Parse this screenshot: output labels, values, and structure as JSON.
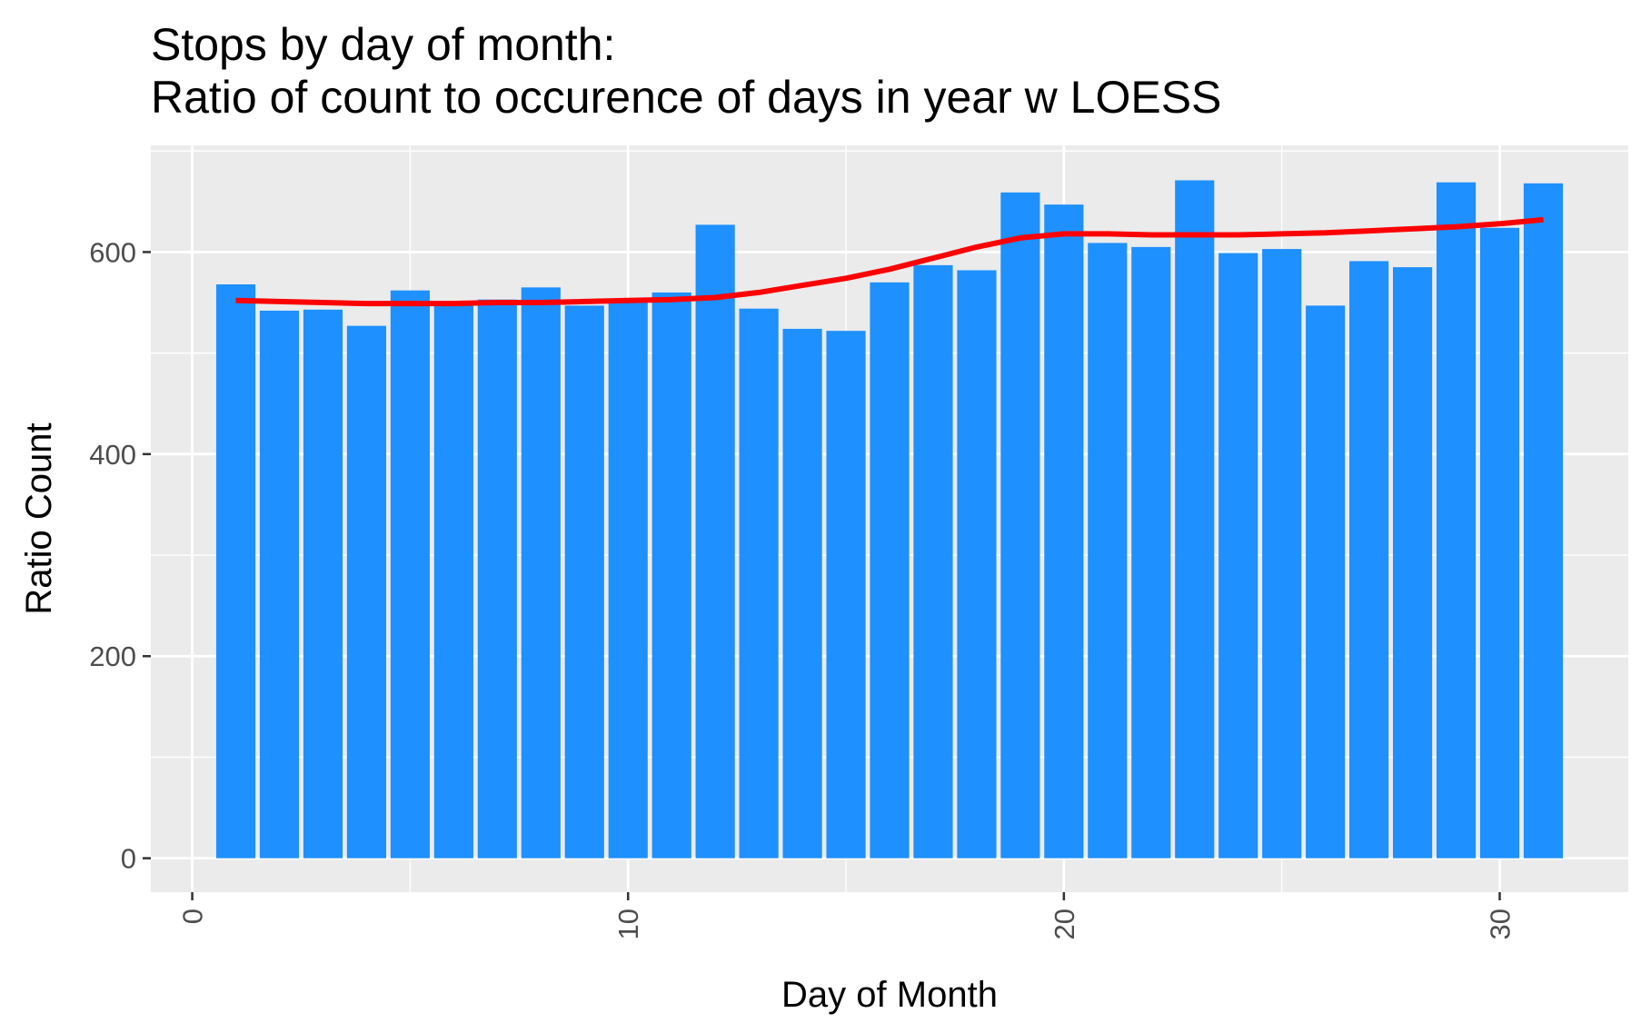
{
  "chart_data": {
    "type": "bar",
    "title": "Stops by day of month:",
    "subtitle": "Ratio of count to occurence of days in year w LOESS",
    "xlabel": "Day of Month",
    "ylabel": "Ratio Count",
    "x": [
      1,
      2,
      3,
      4,
      5,
      6,
      7,
      8,
      9,
      10,
      11,
      12,
      13,
      14,
      15,
      16,
      17,
      18,
      19,
      20,
      21,
      22,
      23,
      24,
      25,
      26,
      27,
      28,
      29,
      30,
      31
    ],
    "values": [
      568,
      542,
      543,
      527,
      562,
      551,
      553,
      565,
      547,
      551,
      560,
      627,
      544,
      524,
      522,
      570,
      587,
      582,
      659,
      647,
      609,
      605,
      671,
      599,
      603,
      547,
      591,
      585,
      669,
      624,
      668
    ],
    "loess": [
      552,
      551,
      550,
      549,
      549,
      549,
      550,
      550,
      551,
      552,
      553,
      555,
      560,
      567,
      574,
      583,
      594,
      605,
      614,
      618,
      618,
      617,
      617,
      617,
      618,
      619,
      621,
      623,
      625,
      628,
      632
    ],
    "xlim": [
      -0.95,
      32.95
    ],
    "ylim": [
      -33.6,
      705.6
    ],
    "x_ticks": [
      0,
      10,
      20,
      30
    ],
    "y_ticks": [
      0,
      200,
      400,
      600
    ],
    "grid": true,
    "legend": "none",
    "colors": {
      "bar": "#1E90FF",
      "line": "#FF0000",
      "panel": "#EBEBEB",
      "grid": "#FFFFFF"
    }
  }
}
